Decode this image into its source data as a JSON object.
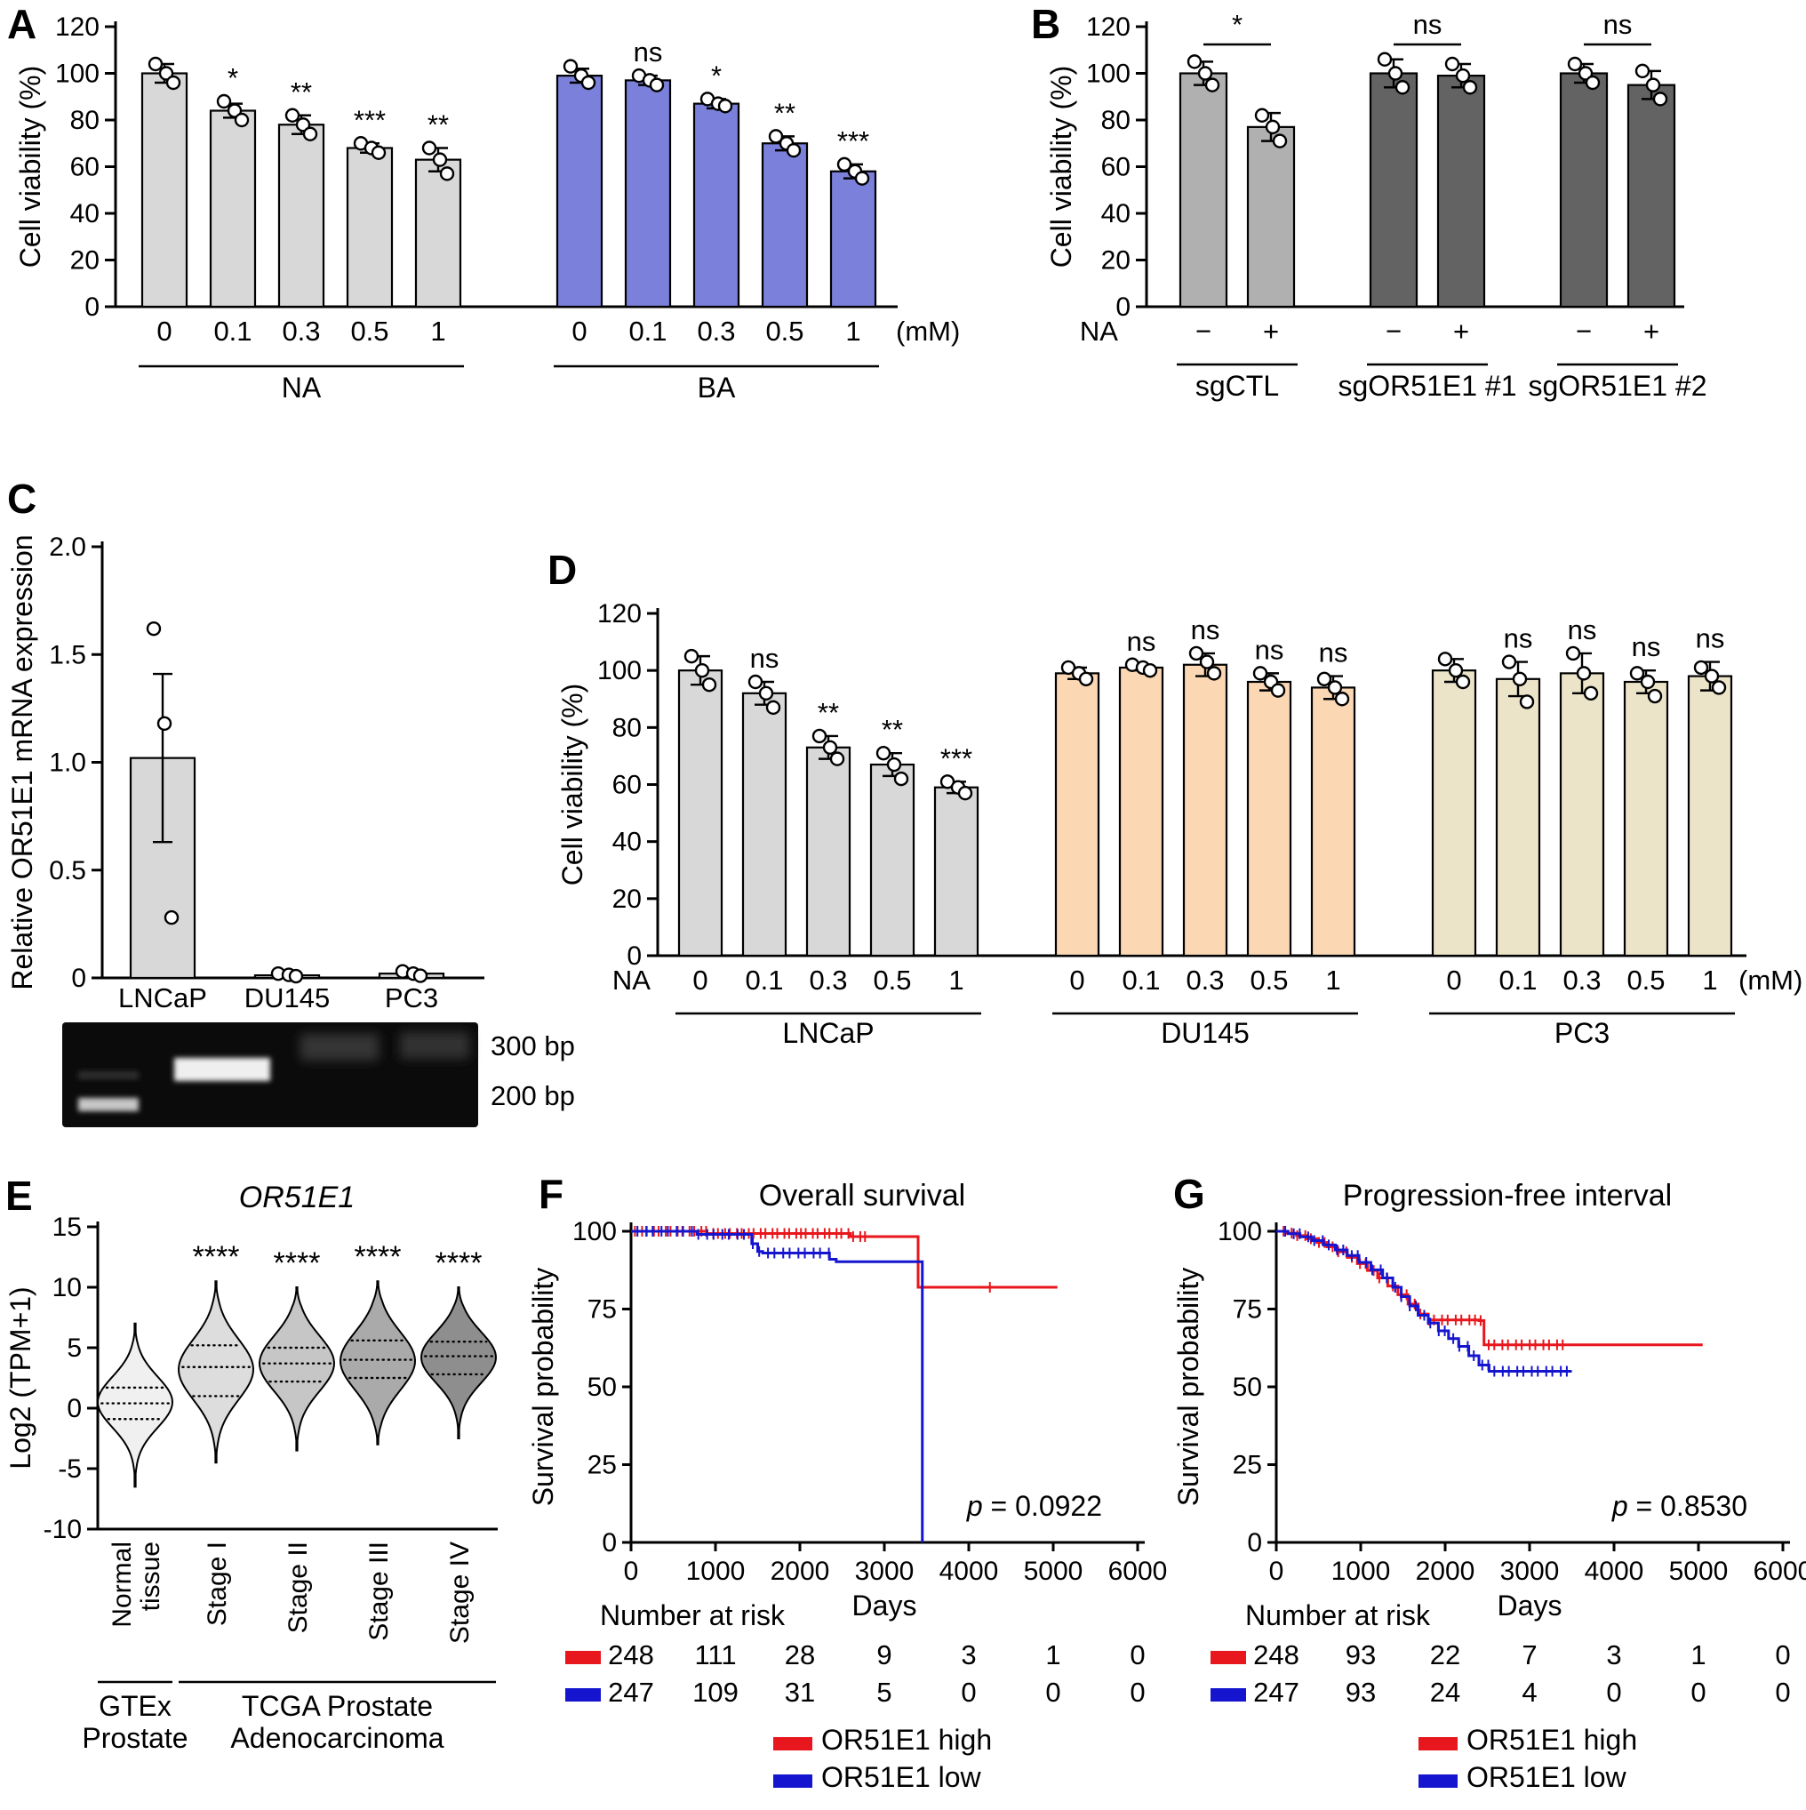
{
  "panel_labels": {
    "A": "A",
    "B": "B",
    "C": "C",
    "D": "D",
    "E": "E",
    "F": "F",
    "G": "G"
  },
  "chart_data": [
    {
      "panel": "A",
      "type": "bar",
      "ylabel": "Cell viability (%)",
      "ylim": [
        0,
        120
      ],
      "yticks": [
        0,
        20,
        40,
        60,
        80,
        100,
        120
      ],
      "categories": [
        "0",
        "0.1",
        "0.3",
        "0.5",
        "1"
      ],
      "unit_label": "(mM)",
      "groups": [
        {
          "name": "NA",
          "color": "#d8d8d8",
          "values": [
            100,
            84,
            78,
            68,
            63
          ],
          "errors": [
            4,
            3,
            4,
            2,
            5
          ],
          "sig": [
            "",
            "*",
            "**",
            "***",
            "**"
          ],
          "points": [
            [
              104,
              100,
              96
            ],
            [
              88,
              84,
              80
            ],
            [
              82,
              78,
              74
            ],
            [
              70,
              68,
              66
            ],
            [
              68,
              63,
              57
            ]
          ]
        },
        {
          "name": "BA",
          "color": "#7b80da",
          "values": [
            99,
            97,
            87,
            70,
            58
          ],
          "errors": [
            3,
            2,
            2,
            3,
            3
          ],
          "sig": [
            "",
            "ns",
            "*",
            "**",
            "***"
          ],
          "points": [
            [
              103,
              99,
              96
            ],
            [
              99,
              97,
              95
            ],
            [
              89,
              87,
              86
            ],
            [
              73,
              70,
              67
            ],
            [
              61,
              58,
              55
            ]
          ]
        }
      ]
    },
    {
      "panel": "B",
      "type": "bar",
      "ylabel": "Cell viability (%)",
      "ylim": [
        0,
        120
      ],
      "yticks": [
        0,
        20,
        40,
        60,
        80,
        100,
        120
      ],
      "row_label": "NA",
      "groups": [
        {
          "name": "sgCTL",
          "color": "#b0b0b0",
          "categories": [
            "−",
            "+"
          ],
          "values": [
            100,
            77
          ],
          "errors": [
            5,
            6
          ],
          "pair_sig": "*",
          "points": [
            [
              105,
              100,
              95
            ],
            [
              82,
              77,
              71
            ]
          ]
        },
        {
          "name": "sgOR51E1 #1",
          "color": "#636363",
          "categories": [
            "−",
            "+"
          ],
          "values": [
            100,
            99
          ],
          "errors": [
            6,
            5
          ],
          "pair_sig": "ns",
          "points": [
            [
              106,
              100,
              94
            ],
            [
              104,
              99,
              94
            ]
          ]
        },
        {
          "name": "sgOR51E1 #2",
          "color": "#636363",
          "categories": [
            "−",
            "+"
          ],
          "values": [
            100,
            95
          ],
          "errors": [
            4,
            6
          ],
          "pair_sig": "ns",
          "points": [
            [
              104,
              100,
              96
            ],
            [
              101,
              95,
              89
            ]
          ]
        }
      ]
    },
    {
      "panel": "C",
      "type": "bar",
      "ylabel": "Relative OR51E1 mRNA expression",
      "ylim": [
        0,
        2
      ],
      "yticks": [
        0,
        0.5,
        1,
        1.5,
        2
      ],
      "ytick_labels": [
        "0",
        "0.5",
        "1.0",
        "1.5",
        "2.0"
      ],
      "groups": [
        {
          "name": "",
          "color": "#d8d8d8",
          "categories": [
            "LNCaP",
            "DU145",
            "PC3"
          ],
          "values": [
            1.02,
            0.012,
            0.02
          ],
          "errors": [
            0.39,
            0.008,
            0.012
          ],
          "points": [
            [
              1.62,
              1.18,
              0.28
            ],
            [
              0.02,
              0.014,
              0.008
            ],
            [
              0.03,
              0.02,
              0.01
            ]
          ]
        }
      ],
      "gel": {
        "marker_labels": [
          "300 bp",
          "200 bp"
        ],
        "lanes": [
          "ladder",
          "LNCaP",
          "DU145",
          "PC3"
        ]
      }
    },
    {
      "panel": "D",
      "type": "bar",
      "ylabel": "Cell viability (%)",
      "ylim": [
        0,
        120
      ],
      "yticks": [
        0,
        20,
        40,
        60,
        80,
        100,
        120
      ],
      "categories": [
        "0",
        "0.1",
        "0.3",
        "0.5",
        "1"
      ],
      "unit_label": "(mM)",
      "row_label": "NA",
      "groups": [
        {
          "name": "LNCaP",
          "color": "#d8d8d8",
          "values": [
            100,
            92,
            73,
            67,
            59
          ],
          "errors": [
            5,
            4,
            4,
            4,
            2
          ],
          "sig": [
            "",
            "ns",
            "**",
            "**",
            "***"
          ],
          "points": [
            [
              105,
              100,
              95
            ],
            [
              96,
              92,
              87
            ],
            [
              77,
              73,
              69
            ],
            [
              71,
              67,
              62
            ],
            [
              61,
              59,
              57
            ]
          ]
        },
        {
          "name": "DU145",
          "color": "#fbd7b4",
          "values": [
            99,
            101,
            102,
            96,
            94
          ],
          "errors": [
            2,
            1,
            4,
            3,
            4
          ],
          "sig": [
            "",
            "ns",
            "ns",
            "ns",
            "ns"
          ],
          "points": [
            [
              101,
              99,
              97
            ],
            [
              102,
              101,
              100
            ],
            [
              106,
              103,
              99
            ],
            [
              99,
              96,
              93
            ],
            [
              97,
              94,
              90
            ]
          ]
        },
        {
          "name": "PC3",
          "color": "#ebe4c8",
          "values": [
            100,
            97,
            99,
            96,
            98
          ],
          "errors": [
            4,
            6,
            7,
            4,
            5
          ],
          "sig": [
            "",
            "ns",
            "ns",
            "ns",
            "ns"
          ],
          "points": [
            [
              104,
              100,
              96
            ],
            [
              103,
              97,
              89
            ],
            [
              106,
              99,
              92
            ],
            [
              99,
              96,
              91
            ],
            [
              101,
              98,
              94
            ]
          ]
        }
      ]
    },
    {
      "panel": "E",
      "type": "violin",
      "title": "OR51E1",
      "ylabel": "Log2 (TPM+1)",
      "ylim": [
        -10,
        15
      ],
      "yticks": [
        -10,
        -5,
        0,
        5,
        10,
        15
      ],
      "categories": [
        "Normal tissue",
        "Stage I",
        "Stage II",
        "Stage III",
        "Stage IV"
      ],
      "category_lines": [
        [
          "Normal",
          "tissue"
        ],
        [
          "Stage I"
        ],
        [
          "Stage II"
        ],
        [
          "Stage III"
        ],
        [
          "Stage IV"
        ]
      ],
      "sig": [
        "",
        "****",
        "****",
        "****",
        "****"
      ],
      "violins": [
        {
          "mu": 0.5,
          "sigma": 2.1,
          "min": -6.5,
          "max": 7,
          "color": "#f0f0f0",
          "quartiles": [
            -0.9,
            0.4,
            1.7
          ]
        },
        {
          "mu": 3.2,
          "sigma": 2.5,
          "min": -4.5,
          "max": 10.5,
          "color": "#dddddd",
          "quartiles": [
            1.0,
            3.4,
            5.2
          ]
        },
        {
          "mu": 3.7,
          "sigma": 2.3,
          "min": -3.5,
          "max": 10.0,
          "color": "#c6c6c6",
          "quartiles": [
            2.2,
            3.7,
            5.0
          ]
        },
        {
          "mu": 3.9,
          "sigma": 2.4,
          "min": -3.0,
          "max": 10.5,
          "color": "#aaaaaa",
          "quartiles": [
            2.5,
            4.0,
            5.6
          ]
        },
        {
          "mu": 4.2,
          "sigma": 2.1,
          "min": -2.5,
          "max": 10.0,
          "color": "#8e8e8e",
          "quartiles": [
            2.8,
            4.3,
            5.5
          ]
        }
      ],
      "group_bars": [
        {
          "label_lines": [
            "GTEx",
            "Prostate"
          ],
          "from": 0,
          "to": 0
        },
        {
          "label_lines": [
            "TCGA Prostate",
            "Adenocarcinoma"
          ],
          "from": 1,
          "to": 4
        }
      ]
    },
    {
      "panel": "F",
      "type": "km",
      "title": "Overall survival",
      "xlabel": "Days",
      "ylabel": "Survival probability",
      "xlim": [
        0,
        6000
      ],
      "xticks": [
        0,
        1000,
        2000,
        3000,
        4000,
        5000,
        6000
      ],
      "yticks": [
        0,
        25,
        50,
        75,
        100
      ],
      "p_label": "p = 0.0922",
      "risk_title": "Number at risk",
      "series": [
        {
          "name": "OR51E1 high",
          "color": "#e8161d",
          "steps": [
            [
              900,
              99.3
            ],
            [
              2600,
              98.3
            ],
            [
              3400,
              82
            ]
          ],
          "end": 5050,
          "censor": {
            "from": 60,
            "to": 2780,
            "n": 40
          },
          "extra_censor": [
            4250
          ],
          "risk": [
            248,
            111,
            28,
            9,
            3,
            1,
            0
          ]
        },
        {
          "name": "OR51E1 low",
          "color": "#1515cf",
          "steps": [
            [
              780,
              99
            ],
            [
              1430,
              96
            ],
            [
              1500,
              93.5
            ],
            [
              1560,
              93
            ],
            [
              2350,
              91
            ],
            [
              2430,
              90.2
            ],
            [
              3450,
              0
            ]
          ],
          "end": 3450,
          "censor": {
            "from": 90,
            "to": 2330,
            "n": 26
          },
          "risk": [
            247,
            109,
            31,
            5,
            0,
            0,
            0
          ]
        }
      ]
    },
    {
      "panel": "G",
      "type": "km",
      "title": "Progression-free interval",
      "xlabel": "Days",
      "ylabel": "Survival probability",
      "xlim": [
        0,
        6000
      ],
      "xticks": [
        0,
        1000,
        2000,
        3000,
        4000,
        5000,
        6000
      ],
      "yticks": [
        0,
        25,
        50,
        75,
        100
      ],
      "p_label": "p = 0.8530",
      "risk_title": "Number at risk",
      "series": [
        {
          "name": "OR51E1 high",
          "color": "#e8161d",
          "steps": [
            [
              120,
              99.4
            ],
            [
              240,
              98.6
            ],
            [
              360,
              97.6
            ],
            [
              480,
              96.4
            ],
            [
              600,
              95
            ],
            [
              720,
              93.4
            ],
            [
              840,
              91.6
            ],
            [
              960,
              89.6
            ],
            [
              1080,
              87.4
            ],
            [
              1200,
              85
            ],
            [
              1320,
              82.4
            ],
            [
              1440,
              79.6
            ],
            [
              1560,
              76.6
            ],
            [
              1680,
              73.4
            ],
            [
              1800,
              71.5
            ],
            [
              2400,
              71.3
            ],
            [
              2460,
              63.5
            ]
          ],
          "end": 5050,
          "censor": {
            "from": 100,
            "to": 3400,
            "n": 42
          },
          "risk": [
            248,
            93,
            22,
            7,
            3,
            1,
            0
          ]
        },
        {
          "name": "OR51E1 low",
          "color": "#1515cf",
          "steps": [
            [
              140,
              99.2
            ],
            [
              280,
              98.2
            ],
            [
              420,
              97
            ],
            [
              560,
              95.6
            ],
            [
              700,
              94
            ],
            [
              840,
              92.2
            ],
            [
              980,
              90
            ],
            [
              1120,
              87.6
            ],
            [
              1260,
              85
            ],
            [
              1380,
              82
            ],
            [
              1480,
              79
            ],
            [
              1580,
              76
            ],
            [
              1680,
              73
            ],
            [
              1800,
              70.5
            ],
            [
              1920,
              68
            ],
            [
              2040,
              65.5
            ],
            [
              2160,
              63
            ],
            [
              2280,
              60
            ],
            [
              2400,
              57
            ],
            [
              2520,
              55
            ]
          ],
          "end": 3500,
          "censor": {
            "from": 120,
            "to": 3450,
            "n": 40
          },
          "risk": [
            247,
            93,
            24,
            4,
            0,
            0,
            0
          ]
        }
      ]
    }
  ]
}
